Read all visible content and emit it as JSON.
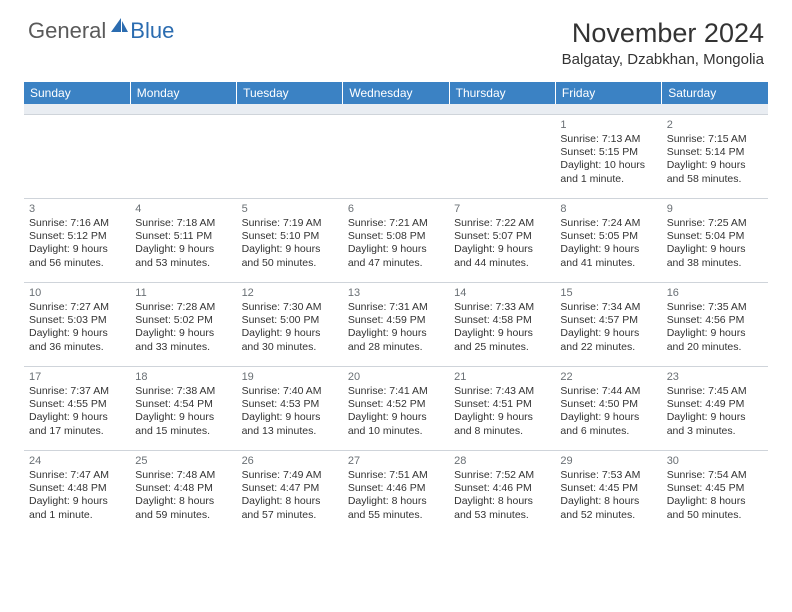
{
  "logo": {
    "general": "General",
    "blue": "Blue"
  },
  "title": "November 2024",
  "location": "Balgatay, Dzabkhan, Mongolia",
  "colors": {
    "header_bg": "#3b82c4",
    "header_text": "#ffffff",
    "spacer_bg": "#e9edf2",
    "border": "#cfd4da",
    "text": "#333333",
    "daynum": "#6a7075",
    "logo_gray": "#5a5a5a",
    "logo_blue": "#2b6cb0"
  },
  "weekdays": [
    "Sunday",
    "Monday",
    "Tuesday",
    "Wednesday",
    "Thursday",
    "Friday",
    "Saturday"
  ],
  "weeks": [
    [
      null,
      null,
      null,
      null,
      null,
      {
        "n": "1",
        "sr": "7:13 AM",
        "ss": "5:15 PM",
        "dl": "10 hours and 1 minute."
      },
      {
        "n": "2",
        "sr": "7:15 AM",
        "ss": "5:14 PM",
        "dl": "9 hours and 58 minutes."
      }
    ],
    [
      {
        "n": "3",
        "sr": "7:16 AM",
        "ss": "5:12 PM",
        "dl": "9 hours and 56 minutes."
      },
      {
        "n": "4",
        "sr": "7:18 AM",
        "ss": "5:11 PM",
        "dl": "9 hours and 53 minutes."
      },
      {
        "n": "5",
        "sr": "7:19 AM",
        "ss": "5:10 PM",
        "dl": "9 hours and 50 minutes."
      },
      {
        "n": "6",
        "sr": "7:21 AM",
        "ss": "5:08 PM",
        "dl": "9 hours and 47 minutes."
      },
      {
        "n": "7",
        "sr": "7:22 AM",
        "ss": "5:07 PM",
        "dl": "9 hours and 44 minutes."
      },
      {
        "n": "8",
        "sr": "7:24 AM",
        "ss": "5:05 PM",
        "dl": "9 hours and 41 minutes."
      },
      {
        "n": "9",
        "sr": "7:25 AM",
        "ss": "5:04 PM",
        "dl": "9 hours and 38 minutes."
      }
    ],
    [
      {
        "n": "10",
        "sr": "7:27 AM",
        "ss": "5:03 PM",
        "dl": "9 hours and 36 minutes."
      },
      {
        "n": "11",
        "sr": "7:28 AM",
        "ss": "5:02 PM",
        "dl": "9 hours and 33 minutes."
      },
      {
        "n": "12",
        "sr": "7:30 AM",
        "ss": "5:00 PM",
        "dl": "9 hours and 30 minutes."
      },
      {
        "n": "13",
        "sr": "7:31 AM",
        "ss": "4:59 PM",
        "dl": "9 hours and 28 minutes."
      },
      {
        "n": "14",
        "sr": "7:33 AM",
        "ss": "4:58 PM",
        "dl": "9 hours and 25 minutes."
      },
      {
        "n": "15",
        "sr": "7:34 AM",
        "ss": "4:57 PM",
        "dl": "9 hours and 22 minutes."
      },
      {
        "n": "16",
        "sr": "7:35 AM",
        "ss": "4:56 PM",
        "dl": "9 hours and 20 minutes."
      }
    ],
    [
      {
        "n": "17",
        "sr": "7:37 AM",
        "ss": "4:55 PM",
        "dl": "9 hours and 17 minutes."
      },
      {
        "n": "18",
        "sr": "7:38 AM",
        "ss": "4:54 PM",
        "dl": "9 hours and 15 minutes."
      },
      {
        "n": "19",
        "sr": "7:40 AM",
        "ss": "4:53 PM",
        "dl": "9 hours and 13 minutes."
      },
      {
        "n": "20",
        "sr": "7:41 AM",
        "ss": "4:52 PM",
        "dl": "9 hours and 10 minutes."
      },
      {
        "n": "21",
        "sr": "7:43 AM",
        "ss": "4:51 PM",
        "dl": "9 hours and 8 minutes."
      },
      {
        "n": "22",
        "sr": "7:44 AM",
        "ss": "4:50 PM",
        "dl": "9 hours and 6 minutes."
      },
      {
        "n": "23",
        "sr": "7:45 AM",
        "ss": "4:49 PM",
        "dl": "9 hours and 3 minutes."
      }
    ],
    [
      {
        "n": "24",
        "sr": "7:47 AM",
        "ss": "4:48 PM",
        "dl": "9 hours and 1 minute."
      },
      {
        "n": "25",
        "sr": "7:48 AM",
        "ss": "4:48 PM",
        "dl": "8 hours and 59 minutes."
      },
      {
        "n": "26",
        "sr": "7:49 AM",
        "ss": "4:47 PM",
        "dl": "8 hours and 57 minutes."
      },
      {
        "n": "27",
        "sr": "7:51 AM",
        "ss": "4:46 PM",
        "dl": "8 hours and 55 minutes."
      },
      {
        "n": "28",
        "sr": "7:52 AM",
        "ss": "4:46 PM",
        "dl": "8 hours and 53 minutes."
      },
      {
        "n": "29",
        "sr": "7:53 AM",
        "ss": "4:45 PM",
        "dl": "8 hours and 52 minutes."
      },
      {
        "n": "30",
        "sr": "7:54 AM",
        "ss": "4:45 PM",
        "dl": "8 hours and 50 minutes."
      }
    ]
  ]
}
